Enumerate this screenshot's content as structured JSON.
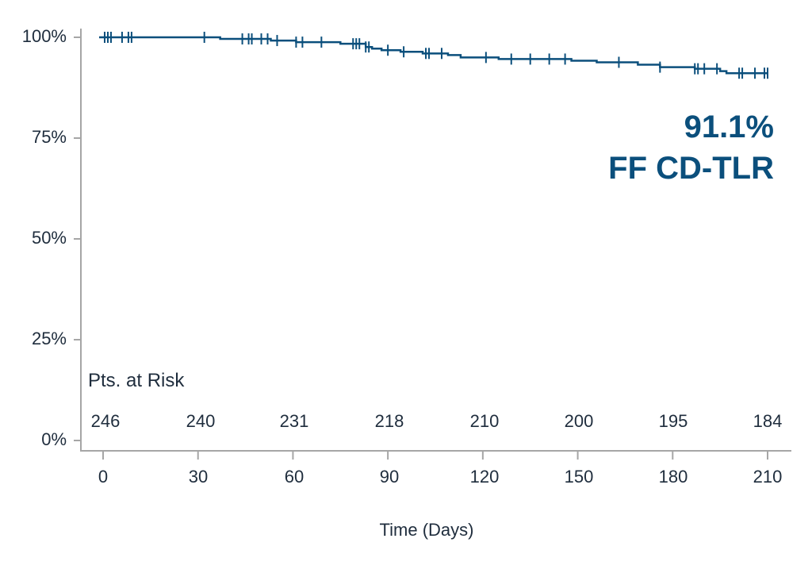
{
  "chart_data": {
    "type": "line",
    "subtype": "kaplan-meier-step",
    "title": "",
    "xlabel": "Time (Days)",
    "ylabel": "",
    "xlim": [
      0,
      210
    ],
    "ylim": [
      0,
      100
    ],
    "x_ticks": [
      0,
      30,
      60,
      90,
      120,
      150,
      180,
      210
    ],
    "y_ticks": [
      "0%",
      "25%",
      "50%",
      "75%",
      "100%"
    ],
    "grid": false,
    "legend": null,
    "series": [
      {
        "name": "FF CD-TLR",
        "color": "#0b4f7c",
        "steps": [
          [
            0,
            100.0
          ],
          [
            36,
            100.0
          ],
          [
            37,
            99.6
          ],
          [
            52,
            99.6
          ],
          [
            53,
            99.2
          ],
          [
            60,
            99.2
          ],
          [
            61,
            98.8
          ],
          [
            74,
            98.8
          ],
          [
            75,
            98.4
          ],
          [
            82,
            98.4
          ],
          [
            83,
            97.6
          ],
          [
            85,
            97.2
          ],
          [
            88,
            96.8
          ],
          [
            93,
            96.8
          ],
          [
            94,
            96.4
          ],
          [
            100,
            96.4
          ],
          [
            101,
            96.0
          ],
          [
            108,
            96.0
          ],
          [
            109,
            95.6
          ],
          [
            112,
            95.6
          ],
          [
            113,
            95.0
          ],
          [
            124,
            95.0
          ],
          [
            125,
            94.6
          ],
          [
            147,
            94.6
          ],
          [
            148,
            94.2
          ],
          [
            156,
            93.8
          ],
          [
            168,
            93.8
          ],
          [
            169,
            93.2
          ],
          [
            175,
            93.2
          ],
          [
            176,
            92.6
          ],
          [
            185,
            92.6
          ],
          [
            187,
            92.2
          ],
          [
            194,
            92.2
          ],
          [
            195,
            91.6
          ],
          [
            197,
            91.1
          ],
          [
            210,
            91.1
          ]
        ],
        "censor_times": [
          0.5,
          1.5,
          2.5,
          6,
          8,
          9,
          32,
          44,
          46,
          47,
          50,
          52,
          55,
          61,
          63,
          69,
          79,
          80,
          81,
          83,
          84,
          90,
          95,
          102,
          103,
          107,
          121,
          129,
          135,
          141,
          146,
          163,
          176,
          187,
          188,
          190,
          194,
          201,
          202,
          206,
          209,
          210
        ]
      }
    ],
    "annotations": [
      {
        "text": "91.1%",
        "position": "upper-right"
      },
      {
        "text": "FF CD-TLR",
        "position": "upper-right"
      }
    ],
    "risk_table": {
      "title": "Pts. at Risk",
      "times": [
        0,
        30,
        60,
        90,
        120,
        150,
        180,
        210
      ],
      "values": [
        246,
        240,
        231,
        218,
        210,
        200,
        195,
        184
      ]
    }
  },
  "labels": {
    "y_ticks": [
      "100%",
      "75%",
      "50%",
      "25%",
      "0%"
    ],
    "x_ticks": [
      "0",
      "30",
      "60",
      "90",
      "120",
      "150",
      "180",
      "210"
    ],
    "x_title": "Time (Days)",
    "annotation_value": "91.1%",
    "annotation_label": "FF CD-TLR",
    "risk_title": "Pts. at Risk",
    "risk_values": [
      "246",
      "240",
      "231",
      "218",
      "210",
      "200",
      "195",
      "184"
    ]
  },
  "colors": {
    "curve": "#0b4f7c",
    "axis": "#a6a6a6",
    "text": "#1f2d3d",
    "annotation": "#0b4f7c"
  }
}
